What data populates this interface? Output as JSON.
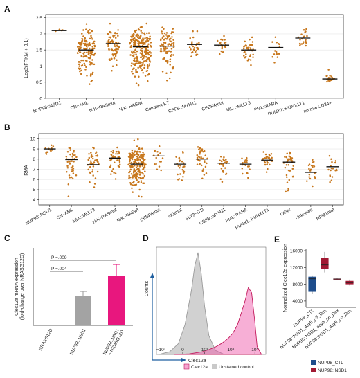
{
  "colors": {
    "dot": "#c8781e",
    "median": "#111111",
    "bar_gray": "#a3a3a3",
    "bar_pink": "#e8177e",
    "hist_pink": "#ee4ea3",
    "hist_gray": "#c9c9c9",
    "box_blue": "#1e4d8c",
    "box_red": "#a11933",
    "axis_blue": "#1f5fa0"
  },
  "chart_data": [
    {
      "id": "A",
      "letter": "A",
      "type": "scatter",
      "ylabel": "Log2(FPKM + 0.1)",
      "ylim": [
        0,
        2.6
      ],
      "yticks": [
        "0",
        "0.5",
        "1",
        "1.5",
        "2",
        "2.5"
      ],
      "grid": true,
      "categories": [
        "NUP98::NSD1",
        "CN−AML",
        "N/K−RASmut",
        "N/K−RASwt",
        "Complex KT",
        "CBFB::MYH11",
        "CEBPAmut",
        "MLL::MLLT3",
        "PML::RARA",
        "RUNX1::RUNX1T1",
        "normal CD34+"
      ],
      "groups": [
        {
          "n": 4,
          "median": 2.1,
          "min": 2.0,
          "max": 2.2
        },
        {
          "n": 150,
          "median": 1.5,
          "min": 0.3,
          "max": 2.4
        },
        {
          "n": 75,
          "median": 1.7,
          "min": 0.7,
          "max": 2.45
        },
        {
          "n": 240,
          "median": 1.6,
          "min": 0.2,
          "max": 2.45
        },
        {
          "n": 95,
          "median": 1.62,
          "min": 0.25,
          "max": 2.45
        },
        {
          "n": 28,
          "median": 1.67,
          "min": 1.1,
          "max": 2.4
        },
        {
          "n": 20,
          "median": 1.65,
          "min": 1.2,
          "max": 2.1
        },
        {
          "n": 42,
          "median": 1.5,
          "min": 0.75,
          "max": 2.0
        },
        {
          "n": 14,
          "median": 1.58,
          "min": 1.0,
          "max": 2.3
        },
        {
          "n": 22,
          "median": 1.87,
          "min": 1.4,
          "max": 2.3
        },
        {
          "n": 22,
          "median": 0.6,
          "min": 0.42,
          "max": 0.95
        }
      ]
    },
    {
      "id": "B",
      "letter": "B",
      "type": "scatter",
      "ylabel": "RMA",
      "ylim": [
        3.5,
        10.5
      ],
      "yticks": [
        "4",
        "5",
        "6",
        "7",
        "8",
        "9",
        "10"
      ],
      "grid": true,
      "categories": [
        "NUP98::NSD1",
        "CN−AML",
        "MLL::MLLT3",
        "N/K−RASmut",
        "N/K−RASwt",
        "CEBPAmut",
        "cKitmut",
        "FLT3−ITD",
        "CBFB::MYH11",
        "PML::RARA",
        "RUNX1::RUNX1T1",
        "Other",
        "Unknown",
        "NPM1mut"
      ],
      "groups": [
        {
          "n": 12,
          "median": 9.0,
          "min": 7.8,
          "max": 9.9
        },
        {
          "n": 45,
          "median": 7.95,
          "min": 4.0,
          "max": 9.7
        },
        {
          "n": 45,
          "median": 7.45,
          "min": 4.0,
          "max": 9.4
        },
        {
          "n": 40,
          "median": 8.1,
          "min": 5.0,
          "max": 9.6
        },
        {
          "n": 200,
          "median": 7.5,
          "min": 3.8,
          "max": 10.1
        },
        {
          "n": 15,
          "median": 8.3,
          "min": 5.9,
          "max": 9.8
        },
        {
          "n": 28,
          "median": 7.5,
          "min": 4.6,
          "max": 9.3
        },
        {
          "n": 38,
          "median": 8.0,
          "min": 5.0,
          "max": 9.8
        },
        {
          "n": 26,
          "median": 7.6,
          "min": 5.0,
          "max": 8.6
        },
        {
          "n": 20,
          "median": 7.5,
          "min": 5.3,
          "max": 8.7
        },
        {
          "n": 28,
          "median": 7.9,
          "min": 5.0,
          "max": 9.2
        },
        {
          "n": 38,
          "median": 7.7,
          "min": 4.0,
          "max": 9.2
        },
        {
          "n": 20,
          "median": 6.7,
          "min": 4.2,
          "max": 8.3
        },
        {
          "n": 18,
          "median": 7.25,
          "min": 4.8,
          "max": 8.6
        }
      ]
    },
    {
      "id": "C",
      "letter": "C",
      "type": "bar",
      "ylabel": "Clec12a mRNA expression\n(fold-change over NRASG12D)",
      "ylim": [
        0,
        350
      ],
      "categories": [
        "NRASG12D",
        "NUP98::NSD1",
        "NUP98::NSD1\n+ NRASG12D"
      ],
      "values": [
        1,
        133,
        225
      ],
      "errors": [
        0,
        20,
        50
      ],
      "annotations": [
        {
          "text": "P =.009",
          "from": 0,
          "to": 2
        },
        {
          "text": "P =.004",
          "from": 0,
          "to": 1
        }
      ]
    },
    {
      "id": "D",
      "letter": "D",
      "type": "area",
      "ylabel": "Counts",
      "xlabel": "Clec12a",
      "xticks": [
        "−10³",
        "0",
        "10³",
        "10⁴",
        "10⁵"
      ],
      "legend": [
        "Clec12a",
        "Unstained control"
      ],
      "legend_position": "bottom",
      "series": [
        {
          "name": "Clec12a",
          "x": [
            1.2,
            1.9,
            2.2,
            2.5,
            2.8,
            3.1,
            3.4,
            3.7,
            3.9,
            4.1,
            4.3,
            4.45,
            4.6,
            4.75,
            4.9,
            5.0,
            5.2
          ],
          "y": [
            0,
            2,
            6,
            10,
            18,
            28,
            42,
            62,
            80,
            110,
            160,
            200,
            250,
            230,
            120,
            30,
            0
          ]
        },
        {
          "name": "Unstained control",
          "x": [
            0.5,
            1.0,
            1.4,
            1.7,
            2.0,
            2.15,
            2.3,
            2.45,
            2.6,
            2.8,
            3.1,
            3.5
          ],
          "y": [
            0,
            10,
            40,
            110,
            240,
            330,
            380,
            300,
            180,
            70,
            15,
            0
          ]
        }
      ]
    },
    {
      "id": "E",
      "letter": "E",
      "type": "box",
      "ylabel": "Normalized Clec12a expression",
      "ylim": [
        2500,
        16500
      ],
      "yticks": [
        "4000",
        "8000",
        "12000",
        "16000"
      ],
      "categories": [
        "NUP98_CTL",
        "NUP98::NSD1_day5_off_Dox",
        "NUP98::NSD1_day3_on_Dox",
        "NUP98::NSD1_day5_on_Dox"
      ],
      "legend": [
        "NUP98_CTL",
        "NUP98::NSD1"
      ],
      "legend_position": "bottom",
      "boxes": [
        {
          "series": "NUP98_CTL",
          "min": 5800,
          "q1": 6200,
          "median": 9300,
          "q3": 9800,
          "max": 10100
        },
        {
          "series": "NUP98::NSD1",
          "min": 10800,
          "q1": 11700,
          "median": 12600,
          "q3": 14200,
          "max": 15700
        },
        {
          "series": "NUP98::NSD1",
          "min": 9000,
          "q1": 9100,
          "median": 9250,
          "q3": 9350,
          "max": 9400
        },
        {
          "series": "NUP98::NSD1",
          "min": 7700,
          "q1": 8000,
          "median": 8400,
          "q3": 8800,
          "max": 9100
        }
      ]
    }
  ]
}
